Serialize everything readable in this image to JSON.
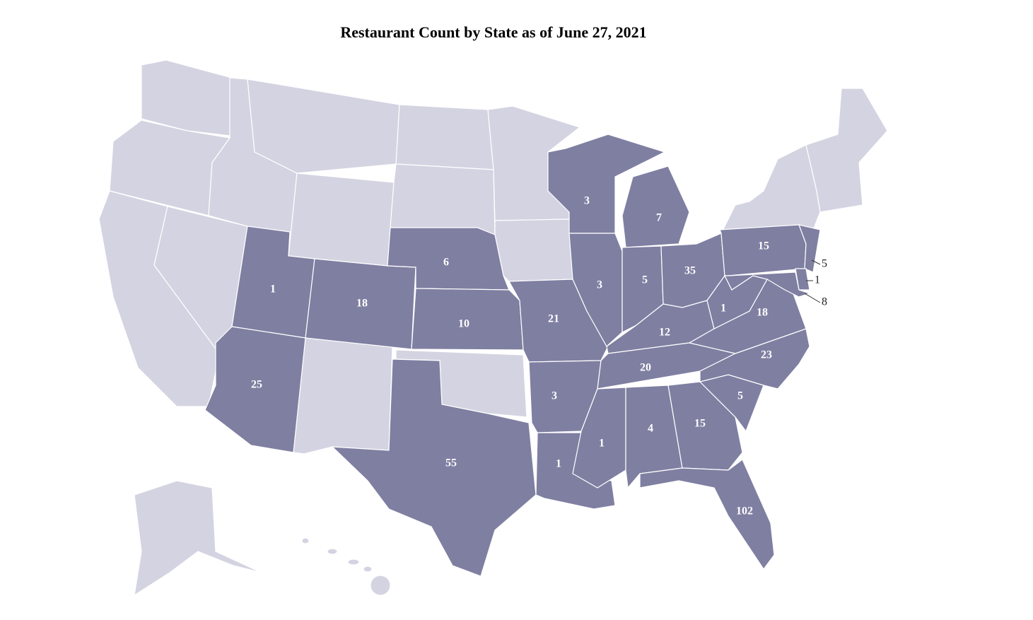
{
  "chart_data": {
    "type": "map",
    "title": "Restaurant Count by State as of June 27, 2021",
    "values": [
      1,
      18,
      6,
      10,
      25,
      55,
      21,
      3,
      1,
      3,
      7,
      3,
      5,
      35,
      12,
      20,
      1,
      4,
      15,
      102,
      5,
      23,
      18,
      1,
      15,
      5,
      1,
      8
    ],
    "color": "#7f7fa2",
    "empty_color": "#d4d3e1"
  }
}
